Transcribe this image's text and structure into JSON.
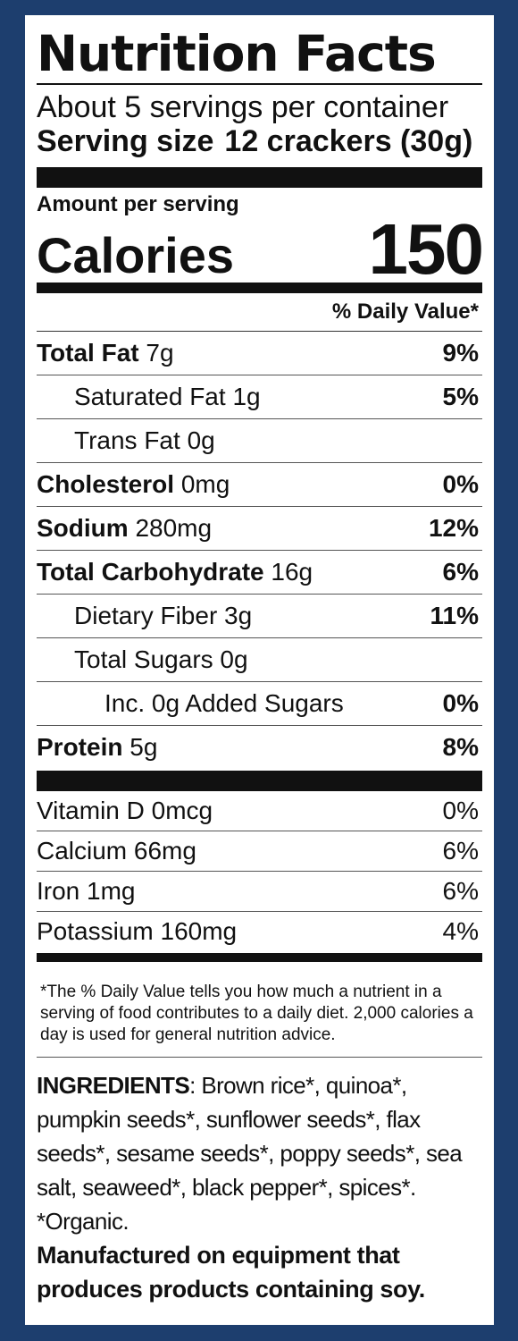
{
  "title": "Nutrition Facts",
  "servings_per_container": "About 5 servings per container",
  "serving_size": {
    "label": "Serving size",
    "value": "12 crackers (30g)"
  },
  "amount_per_serving": "Amount per serving",
  "calories": {
    "label": "Calories",
    "value": "150"
  },
  "daily_value_header": "% Daily Value*",
  "nutrients": [
    {
      "name": "Total Fat",
      "amount": "7g",
      "dv": "9%"
    },
    {
      "name": "Saturated Fat",
      "amount": "1g",
      "dv": "5%"
    },
    {
      "name": "Trans Fat",
      "amount": "0g",
      "dv": ""
    },
    {
      "name": "Cholesterol",
      "amount": "0mg",
      "dv": "0%"
    },
    {
      "name": "Sodium",
      "amount": "280mg",
      "dv": "12%"
    },
    {
      "name": "Total Carbohydrate",
      "amount": "16g",
      "dv": "6%"
    },
    {
      "name": "Dietary Fiber",
      "amount": "3g",
      "dv": "11%"
    },
    {
      "name": "Total Sugars",
      "amount": "0g",
      "dv": ""
    },
    {
      "name": "Inc. 0g Added Sugars",
      "amount": "",
      "dv": "0%"
    },
    {
      "name": "Protein",
      "amount": "5g",
      "dv": "8%"
    }
  ],
  "vitamins": [
    {
      "name": "Vitamin D 0mcg",
      "dv": "0%"
    },
    {
      "name": "Calcium 66mg",
      "dv": "6%"
    },
    {
      "name": "Iron 1mg",
      "dv": "6%"
    },
    {
      "name": "Potassium 160mg",
      "dv": "4%"
    }
  ],
  "footnote": "*The % Daily Value tells you how much a nutrient in a serving of food contributes to a daily diet. 2,000 calories a day is used for general nutrition advice.",
  "ingredients": {
    "label": "INGREDIENTS",
    "text": ": Brown rice*, quinoa*, pumpkin seeds*, sunflower seeds*, flax seeds*, sesame seeds*, poppy seeds*, sea salt, seaweed*, black pepper*, spices*. *Organic."
  },
  "manufactured": "Manufactured on equipment that produces products containing soy.",
  "colors": {
    "background": "#1d3e6e",
    "label": "#ffffff",
    "text": "#111111"
  }
}
